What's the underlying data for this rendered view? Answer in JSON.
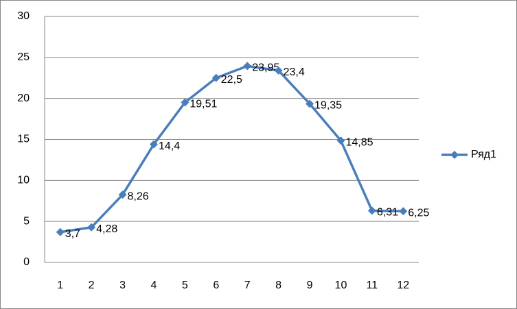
{
  "chart_data": {
    "type": "line",
    "categories": [
      "1",
      "2",
      "3",
      "4",
      "5",
      "6",
      "7",
      "8",
      "9",
      "10",
      "11",
      "12"
    ],
    "series": [
      {
        "name": "Ряд1",
        "color": "#4a7ebb",
        "values": [
          3.7,
          4.28,
          8.26,
          14.4,
          19.51,
          22.5,
          23.95,
          23.4,
          19.35,
          14.85,
          6.31,
          6.25
        ],
        "value_labels": [
          "3,7",
          "4,28",
          "8,26",
          "14,4",
          "19,51",
          "22,5",
          "23,95",
          "23,4",
          "19,35",
          "14,85",
          "6,31",
          "6,25"
        ]
      }
    ],
    "ylim": [
      0,
      30
    ],
    "yticks": [
      0,
      5,
      10,
      15,
      20,
      25,
      30
    ],
    "grid": true,
    "legend": "right"
  }
}
